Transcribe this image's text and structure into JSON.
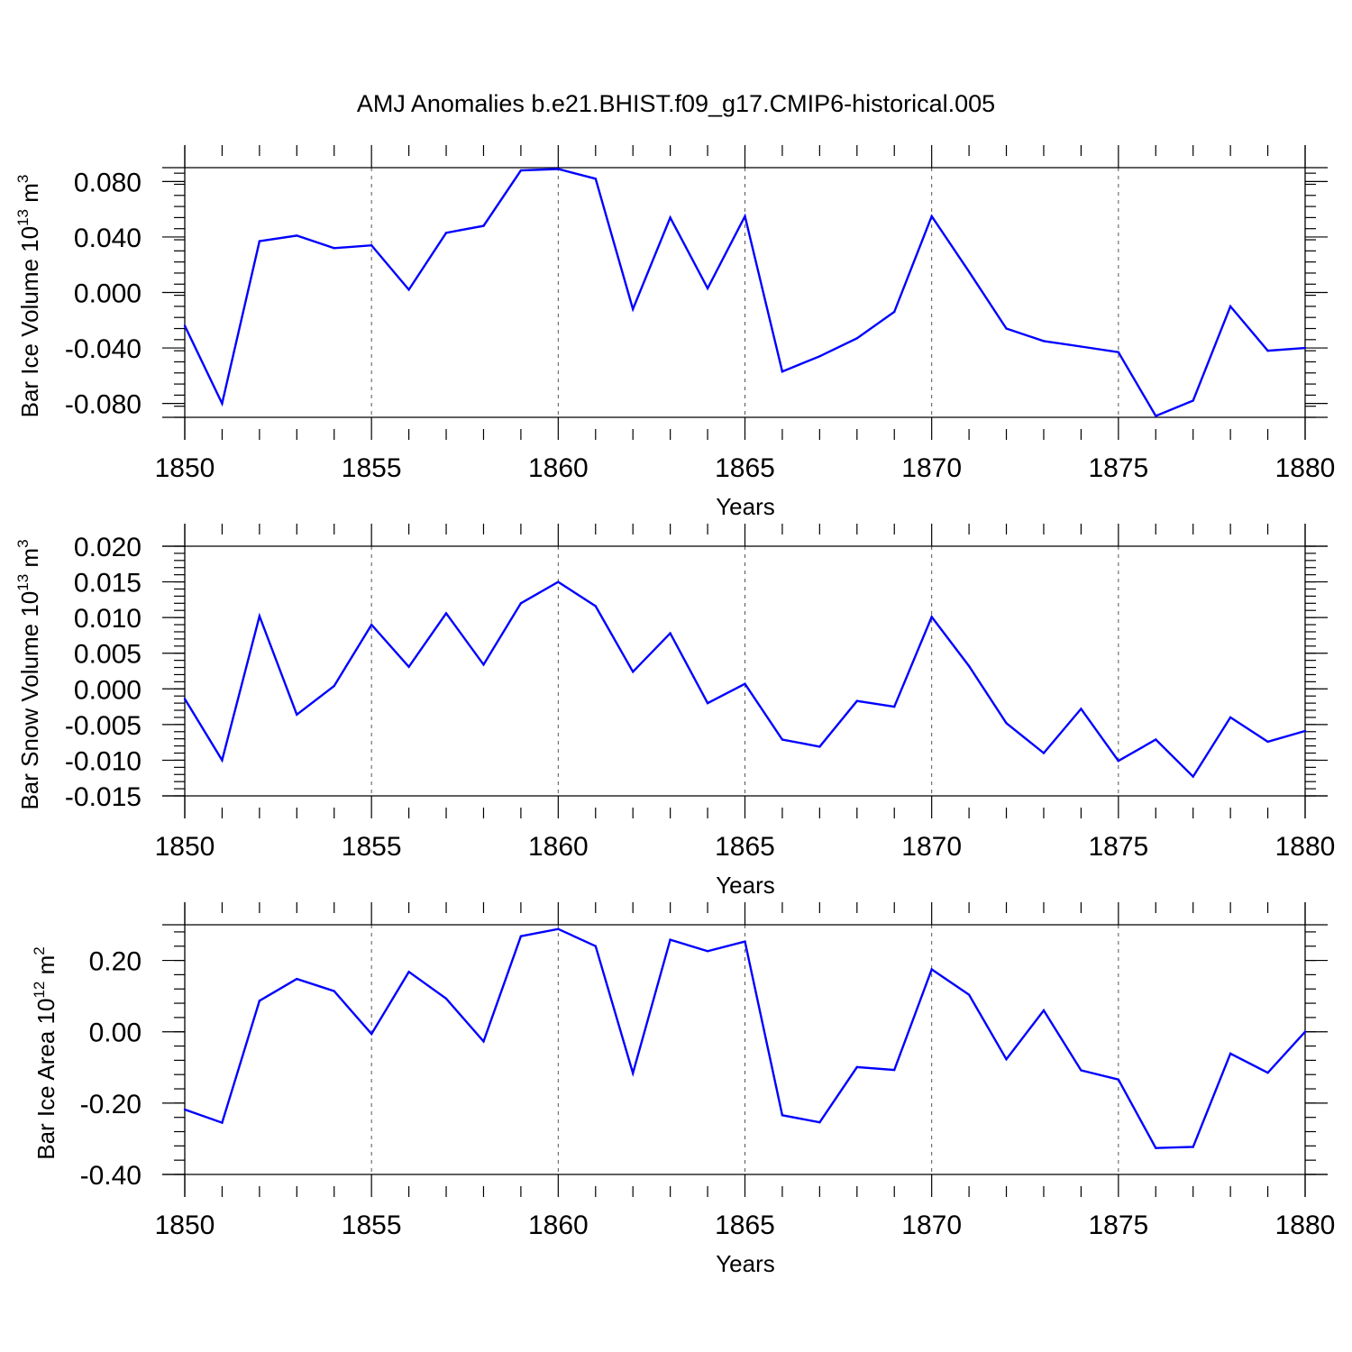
{
  "title": "AMJ Anomalies b.e21.BHIST.f09_g17.CMIP6-historical.005",
  "line_color": "#0000ff",
  "chart_data": [
    {
      "type": "line",
      "ylabel_main": "Bar Ice Volume 10",
      "ylabel_exp": "13",
      "ylabel_unit": " m",
      "ylabel_unit_exp": "3",
      "xlabel": "Years",
      "xlim": [
        1850,
        1880
      ],
      "ylim": [
        -0.09,
        0.09
      ],
      "yticks": [
        -0.08,
        -0.04,
        0.0,
        0.04,
        0.08
      ],
      "ytick_labels": [
        "-0.080",
        "-0.040",
        "0.000",
        "0.040",
        "0.080"
      ],
      "yminor_step": 0.008,
      "x": [
        1850,
        1851,
        1852,
        1853,
        1854,
        1855,
        1856,
        1857,
        1858,
        1859,
        1860,
        1861,
        1862,
        1863,
        1864,
        1865,
        1866,
        1867,
        1868,
        1869,
        1870,
        1871,
        1872,
        1873,
        1874,
        1875,
        1876,
        1877,
        1878,
        1879,
        1880
      ],
      "values": [
        -0.024,
        -0.08,
        0.037,
        0.041,
        0.032,
        0.034,
        0.002,
        0.043,
        0.048,
        0.088,
        0.089,
        0.082,
        -0.012,
        0.054,
        0.003,
        0.055,
        -0.057,
        -0.046,
        -0.033,
        -0.014,
        0.055,
        0.015,
        -0.026,
        -0.035,
        -0.039,
        -0.043,
        -0.089,
        -0.078,
        -0.01,
        -0.042,
        -0.04
      ]
    },
    {
      "type": "line",
      "ylabel_main": "Bar Snow Volume 10",
      "ylabel_exp": "13",
      "ylabel_unit": " m",
      "ylabel_unit_exp": "3",
      "xlabel": "Years",
      "xlim": [
        1850,
        1880
      ],
      "ylim": [
        -0.015,
        0.02
      ],
      "yticks": [
        -0.015,
        -0.01,
        -0.005,
        0.0,
        0.005,
        0.01,
        0.015,
        0.02
      ],
      "ytick_labels": [
        "-0.015",
        "-0.010",
        "-0.005",
        "0.000",
        "0.005",
        "0.010",
        "0.015",
        "0.020"
      ],
      "yminor_step": 0.001,
      "x": [
        1850,
        1851,
        1852,
        1853,
        1854,
        1855,
        1856,
        1857,
        1858,
        1859,
        1860,
        1861,
        1862,
        1863,
        1864,
        1865,
        1866,
        1867,
        1868,
        1869,
        1870,
        1871,
        1872,
        1873,
        1874,
        1875,
        1876,
        1877,
        1878,
        1879,
        1880
      ],
      "values": [
        -0.0014,
        -0.01,
        0.0102,
        -0.0036,
        0.0004,
        0.009,
        0.0031,
        0.0106,
        0.0034,
        0.012,
        0.015,
        0.0116,
        0.0024,
        0.0078,
        -0.002,
        0.0007,
        -0.0071,
        -0.0081,
        -0.0017,
        -0.0025,
        0.0101,
        0.0032,
        -0.0048,
        -0.009,
        -0.0028,
        -0.0101,
        -0.0071,
        -0.0123,
        -0.004,
        -0.0074,
        -0.0059
      ]
    },
    {
      "type": "line",
      "ylabel_main": "Bar Ice Area 10",
      "ylabel_exp": "12",
      "ylabel_unit": " m",
      "ylabel_unit_exp": "2",
      "xlabel": "Years",
      "xlim": [
        1850,
        1880
      ],
      "ylim": [
        -0.4,
        0.3
      ],
      "yticks": [
        -0.4,
        -0.2,
        0.0,
        0.2
      ],
      "ytick_labels": [
        "-0.40",
        "-0.20",
        "0.00",
        "0.20"
      ],
      "yminor_step": 0.04,
      "x": [
        1850,
        1851,
        1852,
        1853,
        1854,
        1855,
        1856,
        1857,
        1858,
        1859,
        1860,
        1861,
        1862,
        1863,
        1864,
        1865,
        1866,
        1867,
        1868,
        1869,
        1870,
        1871,
        1872,
        1873,
        1874,
        1875,
        1876,
        1877,
        1878,
        1879,
        1880
      ],
      "values": [
        -0.218,
        -0.255,
        0.087,
        0.148,
        0.114,
        -0.006,
        0.168,
        0.093,
        -0.027,
        0.268,
        0.288,
        0.24,
        -0.116,
        0.258,
        0.226,
        0.253,
        -0.234,
        -0.254,
        -0.099,
        -0.107,
        0.175,
        0.104,
        -0.077,
        0.06,
        -0.108,
        -0.134,
        -0.326,
        -0.323,
        -0.061,
        -0.115,
        0.0
      ]
    }
  ],
  "xticks": [
    1850,
    1855,
    1860,
    1865,
    1870,
    1875,
    1880
  ],
  "xtick_labels": [
    "1850",
    "1855",
    "1860",
    "1865",
    "1870",
    "1875",
    "1880"
  ]
}
